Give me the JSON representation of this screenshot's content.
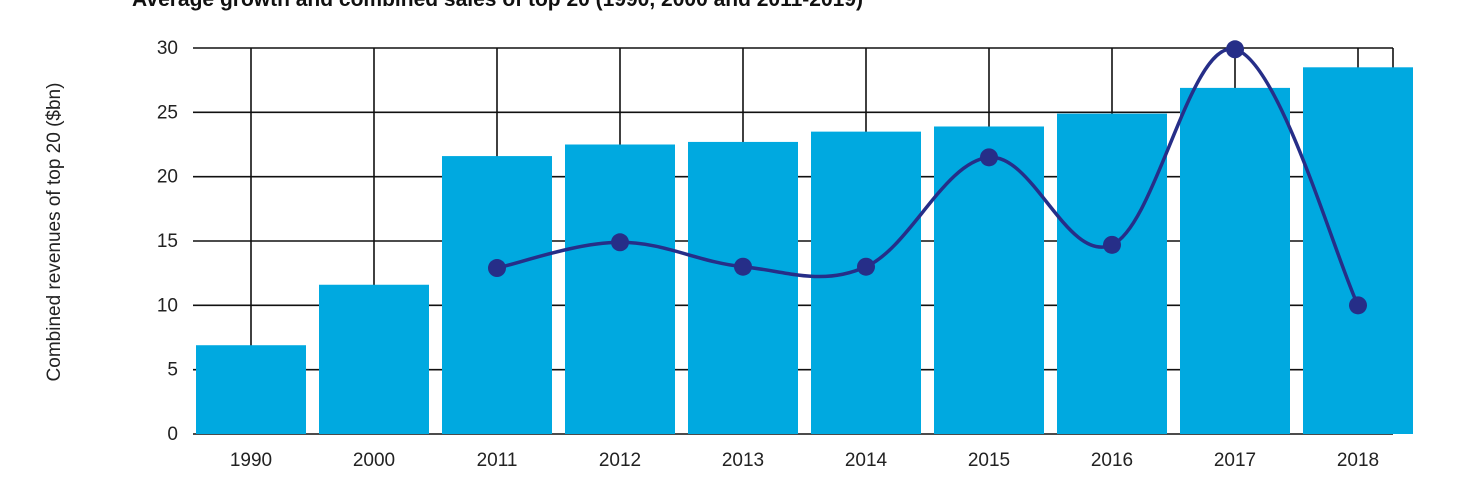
{
  "chart_data": {
    "type": "bar",
    "title": "Average growth and combined sales of top 20 (1990, 2000 and 2011-2019)",
    "xlabel": "",
    "ylabel": "Combined revenues of top 20 ($bn)",
    "categories": [
      "1990",
      "2000",
      "2011",
      "2012",
      "2013",
      "2014",
      "2015",
      "2016",
      "2017",
      "2018"
    ],
    "ylim": [
      0,
      30
    ],
    "yticks": [
      0,
      5,
      10,
      15,
      20,
      25,
      30
    ],
    "grid": true,
    "series": [
      {
        "type": "bar",
        "values": [
          6.9,
          11.6,
          21.6,
          22.5,
          22.7,
          23.5,
          23.9,
          24.9,
          26.9,
          28.5
        ],
        "color": "#00A9E0"
      },
      {
        "type": "line",
        "values": [
          null,
          null,
          12.9,
          14.9,
          13.0,
          13.0,
          21.5,
          14.7,
          29.9,
          10.0
        ],
        "color": "#262E88"
      }
    ]
  }
}
